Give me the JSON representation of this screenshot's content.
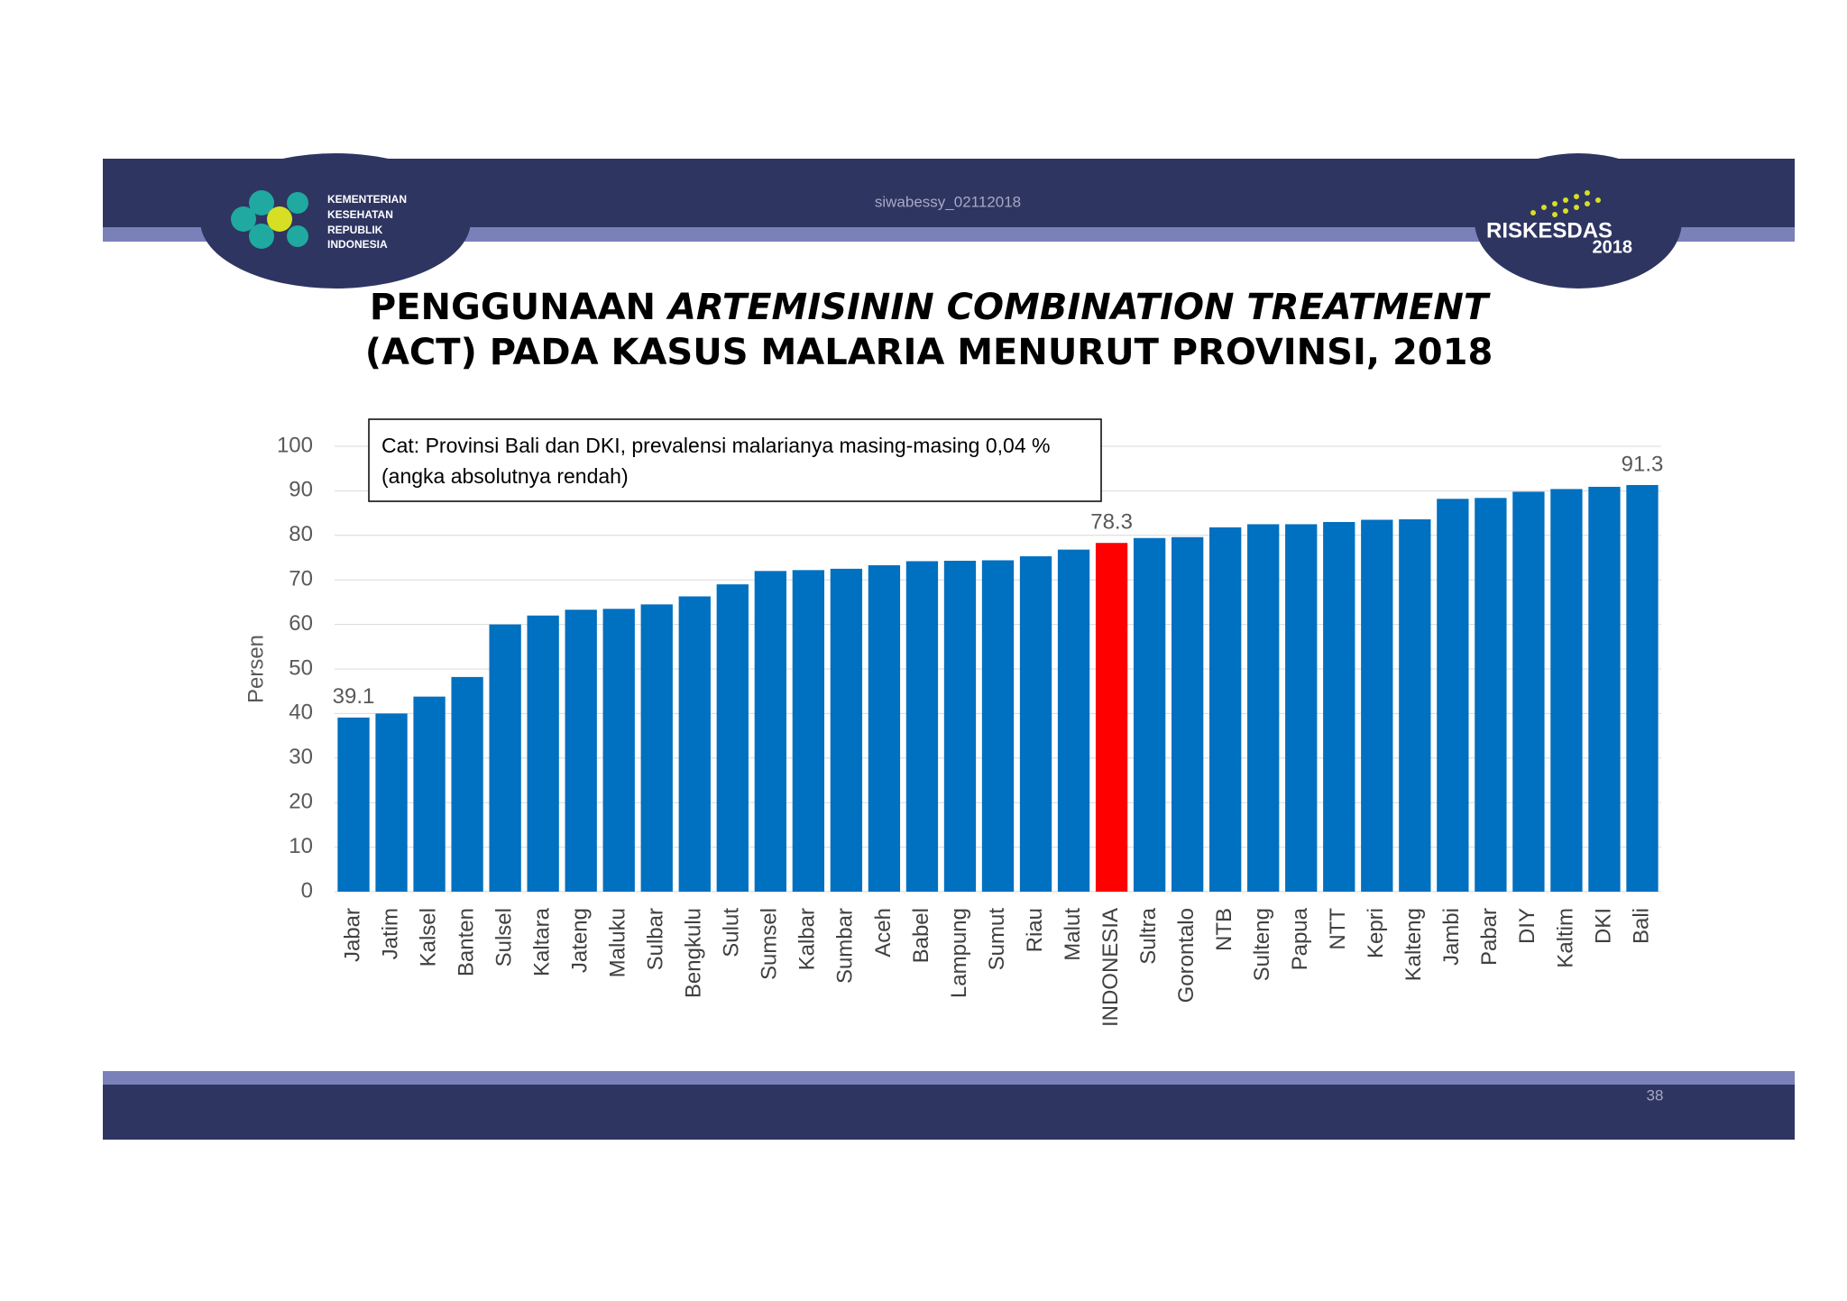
{
  "header": {
    "watermark": "siwabessy_02112018",
    "logo_text": [
      "KEMENTERIAN",
      "KESEHATAN",
      "REPUBLIK",
      "INDONESIA"
    ],
    "brand": "RISKESDAS",
    "brand_year": "2018"
  },
  "footer": {
    "page": "38"
  },
  "chart_data": {
    "type": "bar",
    "title": [
      "PENGGUNAAN",
      "ARTEMISININ COMBINATION TREATMENT",
      "(ACT)  PADA KASUS MALARIA MENURUT PROVINSI, 2018"
    ],
    "annotation": [
      "Cat: Provinsi Bali dan DKI, prevalensi malarianya masing-masing 0,04 %",
      "(angka absolutnya rendah)"
    ],
    "y_label": "Persen",
    "categories": [
      "Jabar",
      "Jatim",
      "Kalsel",
      "Banten",
      "Sulsel",
      "Kaltara",
      "Jateng",
      "Maluku",
      "Sulbar",
      "Bengkulu",
      "Sulut",
      "Sumsel",
      "Kalbar",
      "Sumbar",
      "Aceh",
      "Babel",
      "Lampung",
      "Sumut",
      "Riau",
      "Malut",
      "INDONESIA",
      "Sultra",
      "Gorontalo",
      "NTB",
      "Sulteng",
      "Papua",
      "NTT",
      "Kepri",
      "Kalteng",
      "Jambi",
      "Pabar",
      "DIY",
      "Kaltim",
      "DKI",
      "Bali"
    ],
    "values": [
      39.1,
      40,
      43.8,
      48.2,
      60,
      62,
      63.3,
      63.5,
      64.5,
      66.3,
      69,
      72,
      72.2,
      72.5,
      73.3,
      74.2,
      74.3,
      74.4,
      75.3,
      76.8,
      78.3,
      79.4,
      79.6,
      81.8,
      82.5,
      82.5,
      83,
      83.5,
      83.6,
      88.2,
      88.4,
      89.8,
      90.4,
      90.9,
      91.3
    ],
    "value_labels": [
      "39.1",
      null,
      null,
      null,
      null,
      null,
      null,
      null,
      null,
      null,
      null,
      null,
      null,
      null,
      null,
      null,
      null,
      null,
      null,
      null,
      "78.3",
      null,
      null,
      null,
      null,
      null,
      null,
      null,
      null,
      null,
      null,
      null,
      null,
      null,
      "91.3"
    ],
    "colors": [
      "#0070c0",
      "#0070c0",
      "#0070c0",
      "#0070c0",
      "#0070c0",
      "#0070c0",
      "#0070c0",
      "#0070c0",
      "#0070c0",
      "#0070c0",
      "#0070c0",
      "#0070c0",
      "#0070c0",
      "#0070c0",
      "#0070c0",
      "#0070c0",
      "#0070c0",
      "#0070c0",
      "#0070c0",
      "#0070c0",
      "#ff0000",
      "#0070c0",
      "#0070c0",
      "#0070c0",
      "#0070c0",
      "#0070c0",
      "#0070c0",
      "#0070c0",
      "#0070c0",
      "#0070c0",
      "#0070c0",
      "#0070c0",
      "#0070c0",
      "#0070c0",
      "#0070c0"
    ],
    "ylim": [
      0,
      100
    ],
    "yticks": [
      0,
      10,
      20,
      30,
      40,
      50,
      60,
      70,
      80,
      90,
      100
    ],
    "grid": true
  }
}
